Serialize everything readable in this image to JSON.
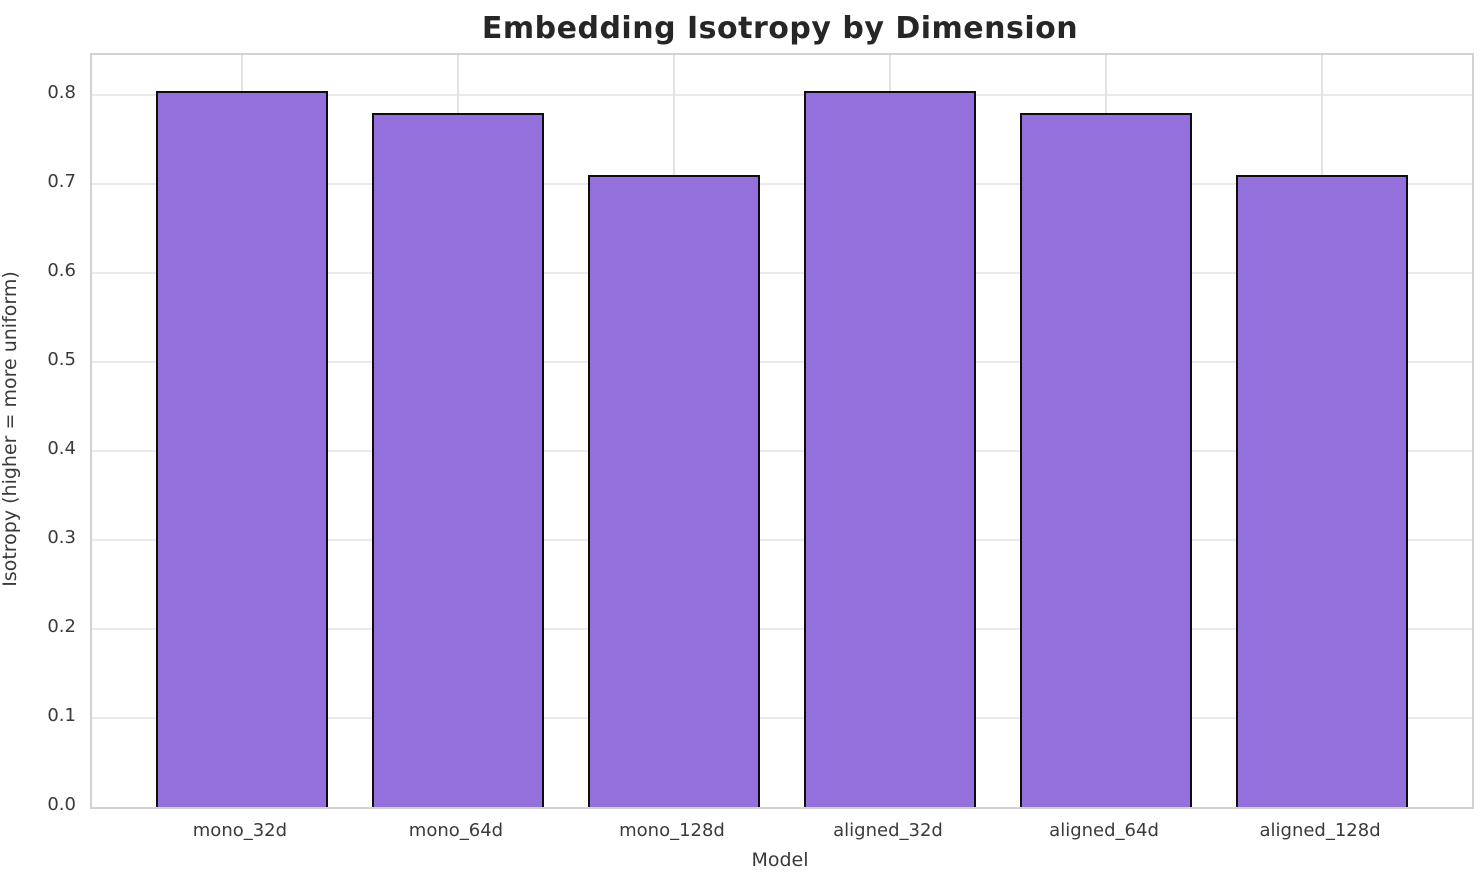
{
  "chart_data": {
    "type": "bar",
    "title": "Embedding Isotropy by Dimension",
    "xlabel": "Model",
    "ylabel": "Isotropy (higher = more uniform)",
    "categories": [
      "mono_32d",
      "mono_64d",
      "mono_128d",
      "aligned_32d",
      "aligned_64d",
      "aligned_128d"
    ],
    "values": [
      0.805,
      0.78,
      0.71,
      0.805,
      0.78,
      0.71
    ],
    "yticks": [
      0.0,
      0.1,
      0.2,
      0.3,
      0.4,
      0.5,
      0.6,
      0.7,
      0.8
    ],
    "ylim": [
      0,
      0.845
    ],
    "xlim": [
      -0.694,
      5.694
    ],
    "bar_width_units": 0.8,
    "grid": true,
    "legend": "none",
    "bar_color": "#9370DB",
    "bar_edge_color": "#0d0d0d",
    "grid_color": "#eaeaea",
    "spine_color": "#d2d2d2",
    "title_color": "#262626",
    "text_color": "#3a3a3a"
  }
}
